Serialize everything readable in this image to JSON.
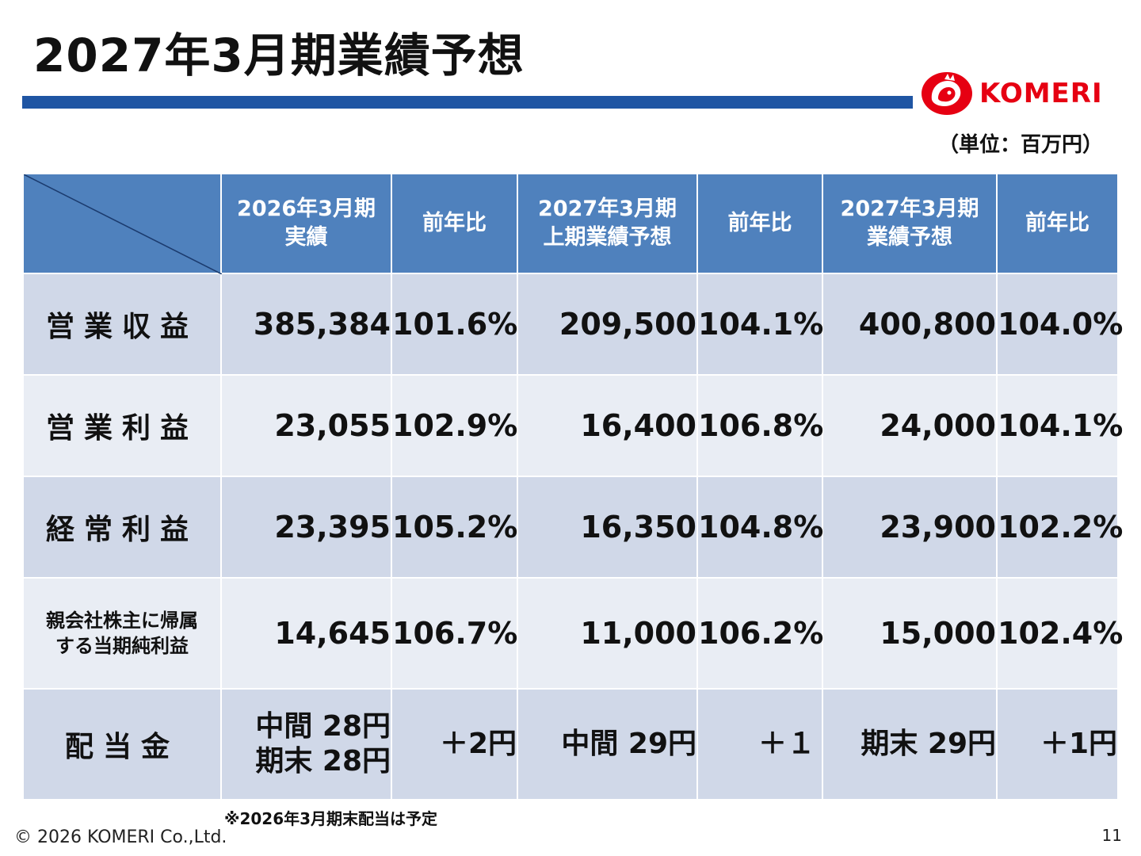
{
  "page": {
    "title": "2027年3月期業績予想",
    "unit": "（単位：百万円）",
    "footnote": "※2026年3月期末配当は予定",
    "copyright": "© 2026 KOMERI Co.,Ltd.",
    "page_number": "11"
  },
  "logo": {
    "text": "KOMERI",
    "icon": "rooster-logo-icon",
    "color": "#e60012"
  },
  "colors": {
    "accent_rule": "#1f55a3",
    "header_bg": "#4f81bd",
    "row_dark": "#d0d8e8",
    "row_light": "#e9edf4"
  },
  "table": {
    "headers": [
      "2026年3月期\n実績",
      "前年比",
      "2027年3月期\n上期業績予想",
      "前年比",
      "2027年3月期\n業績予想",
      "前年比"
    ],
    "rows": [
      {
        "label": "営業収益",
        "cells": [
          "385,384",
          "101.6%",
          "209,500",
          "104.1%",
          "400,800",
          "104.0%"
        ]
      },
      {
        "label": "営業利益",
        "cells": [
          "23,055",
          "102.9%",
          "16,400",
          "106.8%",
          "24,000",
          "104.1%"
        ]
      },
      {
        "label": "経常利益",
        "cells": [
          "23,395",
          "105.2%",
          "16,350",
          "104.8%",
          "23,900",
          "102.2%"
        ]
      },
      {
        "label": "親会社株主に帰属\nする当期純利益",
        "cells": [
          "14,645",
          "106.7%",
          "11,000",
          "106.2%",
          "15,000",
          "102.4%"
        ]
      },
      {
        "label": "配当金",
        "cells": [
          "中間  28円\n期末  28円",
          "＋2円",
          "中間 29円",
          "＋１",
          "期末  29円",
          "＋1円"
        ]
      }
    ]
  }
}
